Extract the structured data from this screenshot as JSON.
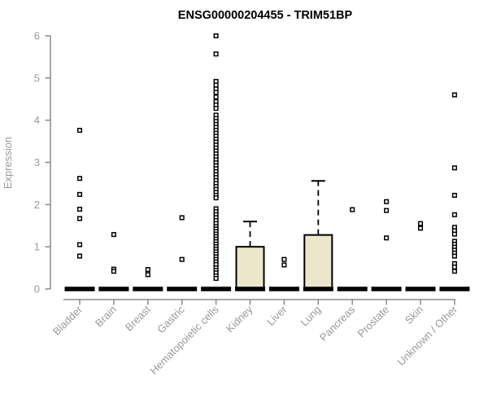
{
  "chart_data": {
    "type": "boxplot",
    "title": "ENSG00000204455 - TRIM51BP",
    "ylabel": "Expression",
    "ylim": [
      0,
      6
    ],
    "yticks": [
      0,
      1,
      2,
      3,
      4,
      5,
      6
    ],
    "grid": false,
    "legend": null,
    "categories": [
      {
        "label": "Bladder",
        "box": {
          "q1": 0,
          "median": 0,
          "q3": 0,
          "whisker_low": 0,
          "whisker_high": 0
        },
        "outliers": [
          3.76,
          2.62,
          2.24,
          1.89,
          1.67,
          1.05,
          0.78
        ]
      },
      {
        "label": "Brain",
        "box": {
          "q1": 0,
          "median": 0,
          "q3": 0,
          "whisker_low": 0,
          "whisker_high": 0
        },
        "outliers": [
          1.29,
          0.47,
          0.42
        ]
      },
      {
        "label": "Breast",
        "box": {
          "q1": 0,
          "median": 0,
          "q3": 0,
          "whisker_low": 0,
          "whisker_high": 0
        },
        "outliers": [
          0.46,
          0.34
        ]
      },
      {
        "label": "Gastric",
        "box": {
          "q1": 0,
          "median": 0,
          "q3": 0,
          "whisker_low": 0,
          "whisker_high": 0
        },
        "outliers": [
          1.69,
          0.7
        ]
      },
      {
        "label": "Hematopoietic cells",
        "box": {
          "q1": 0,
          "median": 0,
          "q3": 0,
          "whisker_low": 0,
          "whisker_high": 0
        },
        "outliers": [
          6.0,
          5.57,
          4.92,
          4.83,
          4.74,
          4.66,
          4.55,
          4.44,
          4.36,
          4.28,
          4.12,
          4.04,
          3.97,
          3.9,
          3.83,
          3.76,
          3.69,
          3.62,
          3.55,
          3.48,
          3.41,
          3.34,
          3.27,
          3.2,
          3.13,
          3.06,
          2.99,
          2.92,
          2.85,
          2.78,
          2.71,
          2.64,
          2.57,
          2.5,
          2.43,
          2.36,
          2.29,
          2.22,
          2.16,
          1.9,
          1.83,
          1.76,
          1.69,
          1.62,
          1.55,
          1.48,
          1.42,
          1.36,
          1.3,
          1.24,
          1.18,
          1.12,
          1.06,
          1.0,
          0.94,
          0.88,
          0.82,
          0.76,
          0.7,
          0.64,
          0.58,
          0.5,
          0.44,
          0.38,
          0.31,
          0.25
        ]
      },
      {
        "label": "Kidney",
        "box": {
          "q1": 0,
          "median": 0,
          "q3": 1.0,
          "whisker_low": 0,
          "whisker_high": 1.6
        },
        "outliers": []
      },
      {
        "label": "Liver",
        "box": {
          "q1": 0,
          "median": 0,
          "q3": 0,
          "whisker_low": 0,
          "whisker_high": 0
        },
        "outliers": [
          0.7,
          0.57
        ]
      },
      {
        "label": "Lung",
        "box": {
          "q1": 0,
          "median": 0,
          "q3": 1.28,
          "whisker_low": 0,
          "whisker_high": 2.56
        },
        "outliers": []
      },
      {
        "label": "Pancreas",
        "box": {
          "q1": 0,
          "median": 0,
          "q3": 0,
          "whisker_low": 0,
          "whisker_high": 0
        },
        "outliers": [
          1.88
        ]
      },
      {
        "label": "Prostate",
        "box": {
          "q1": 0,
          "median": 0,
          "q3": 0,
          "whisker_low": 0,
          "whisker_high": 0
        },
        "outliers": [
          2.07,
          1.86,
          1.21
        ]
      },
      {
        "label": "Skin",
        "box": {
          "q1": 0,
          "median": 0,
          "q3": 0,
          "whisker_low": 0,
          "whisker_high": 0
        },
        "outliers": [
          1.55,
          1.44
        ]
      },
      {
        "label": "Unknown / Other",
        "box": {
          "q1": 0,
          "median": 0,
          "q3": 0,
          "whisker_low": 0,
          "whisker_high": 0
        },
        "outliers": [
          4.6,
          2.87,
          2.22,
          1.76,
          1.46,
          1.38,
          1.3,
          1.13,
          1.06,
          0.99,
          0.92,
          0.85,
          0.78,
          0.6,
          0.52,
          0.42
        ]
      }
    ]
  },
  "styles": {
    "background": "#FFFFFF",
    "title_color": "#000000",
    "axis_color": "#8A8A8A",
    "label_color": "#999999",
    "box_fill": "#ECE6CB",
    "box_border": "#000000",
    "median_color": "#000000",
    "point_stroke": "#000000",
    "point_fill": "#FFFFFF"
  }
}
